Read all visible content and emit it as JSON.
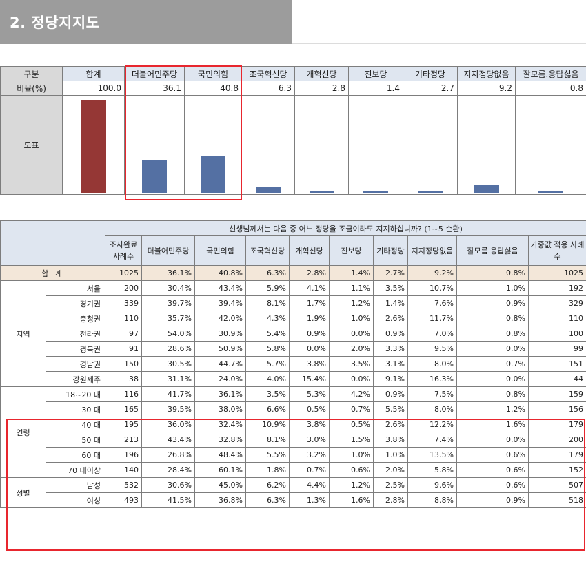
{
  "section_title": "2. 정당지지도",
  "top_table": {
    "header": [
      "구분",
      "합계",
      "더불어민주당",
      "국민의힘",
      "조국혁신당",
      "개혁신당",
      "진보당",
      "기타정당",
      "지지정당없음",
      "잘모름.응답싫음"
    ],
    "rate_label": "비율(%)",
    "rates": [
      "100.0",
      "36.1",
      "40.8",
      "6.3",
      "2.8",
      "1.4",
      "2.7",
      "9.2",
      "0.8"
    ],
    "chart_label": "도표"
  },
  "chart_data": {
    "type": "bar",
    "categories": [
      "합계",
      "더불어민주당",
      "국민의힘",
      "조국혁신당",
      "개혁신당",
      "진보당",
      "기타정당",
      "지지정당없음",
      "잘모름.응답싫음"
    ],
    "values": [
      100.0,
      36.1,
      40.8,
      6.3,
      2.8,
      1.4,
      2.7,
      9.2,
      0.8
    ],
    "ylim": [
      0,
      100
    ],
    "colors": {
      "total": "#953735",
      "party": "#5470a3"
    }
  },
  "detail_table": {
    "question": "선생님께서는 다음 중 어느 정당을 조금이라도 지지하십니까? (1~5 순환)",
    "columns": [
      "조사완료 사례수",
      "더불어민주당",
      "국민의힘",
      "조국혁신당",
      "개혁신당",
      "진보당",
      "기타정당",
      "지지정당없음",
      "잘모름.응답싫음",
      "가중값 적용 사례수"
    ],
    "total_label": "합 계",
    "total_row": [
      "1025",
      "36.1%",
      "40.8%",
      "6.3%",
      "2.8%",
      "1.4%",
      "2.7%",
      "9.2%",
      "0.8%",
      "1025"
    ],
    "groups": [
      {
        "name": "지역",
        "rows": [
          {
            "label": "서울",
            "values": [
              "200",
              "30.4%",
              "43.4%",
              "5.9%",
              "4.1%",
              "1.1%",
              "3.5%",
              "10.7%",
              "1.0%",
              "192"
            ]
          },
          {
            "label": "경기권",
            "values": [
              "339",
              "39.7%",
              "39.4%",
              "8.1%",
              "1.7%",
              "1.2%",
              "1.4%",
              "7.6%",
              "0.9%",
              "329"
            ]
          },
          {
            "label": "충청권",
            "values": [
              "110",
              "35.7%",
              "42.0%",
              "4.3%",
              "1.9%",
              "1.0%",
              "2.6%",
              "11.7%",
              "0.8%",
              "110"
            ]
          },
          {
            "label": "전라권",
            "values": [
              "97",
              "54.0%",
              "30.9%",
              "5.4%",
              "0.9%",
              "0.0%",
              "0.9%",
              "7.0%",
              "0.8%",
              "100"
            ]
          },
          {
            "label": "경북권",
            "values": [
              "91",
              "28.6%",
              "50.9%",
              "5.8%",
              "0.0%",
              "2.0%",
              "3.3%",
              "9.5%",
              "0.0%",
              "99"
            ]
          },
          {
            "label": "경남권",
            "values": [
              "150",
              "30.5%",
              "44.7%",
              "5.7%",
              "3.8%",
              "3.5%",
              "3.1%",
              "8.0%",
              "0.7%",
              "151"
            ]
          },
          {
            "label": "강원제주",
            "values": [
              "38",
              "31.1%",
              "24.0%",
              "4.0%",
              "15.4%",
              "0.0%",
              "9.1%",
              "16.3%",
              "0.0%",
              "44"
            ]
          }
        ]
      },
      {
        "name": "연령",
        "rows": [
          {
            "label": "18~20 대",
            "values": [
              "116",
              "41.7%",
              "36.1%",
              "3.5%",
              "5.3%",
              "4.2%",
              "0.9%",
              "7.5%",
              "0.8%",
              "159"
            ]
          },
          {
            "label": "30 대",
            "values": [
              "165",
              "39.5%",
              "38.0%",
              "6.6%",
              "0.5%",
              "0.7%",
              "5.5%",
              "8.0%",
              "1.2%",
              "156"
            ]
          },
          {
            "label": "40 대",
            "values": [
              "195",
              "36.0%",
              "32.4%",
              "10.9%",
              "3.8%",
              "0.5%",
              "2.6%",
              "12.2%",
              "1.6%",
              "179"
            ]
          },
          {
            "label": "50 대",
            "values": [
              "213",
              "43.4%",
              "32.8%",
              "8.1%",
              "3.0%",
              "1.5%",
              "3.8%",
              "7.4%",
              "0.0%",
              "200"
            ]
          },
          {
            "label": "60 대",
            "values": [
              "196",
              "26.8%",
              "48.4%",
              "5.5%",
              "3.2%",
              "1.0%",
              "1.0%",
              "13.5%",
              "0.6%",
              "179"
            ]
          },
          {
            "label": "70 대이상",
            "values": [
              "140",
              "28.4%",
              "60.1%",
              "1.8%",
              "0.7%",
              "0.6%",
              "2.0%",
              "5.8%",
              "0.6%",
              "152"
            ]
          }
        ]
      },
      {
        "name": "성별",
        "rows": [
          {
            "label": "남성",
            "values": [
              "532",
              "30.6%",
              "45.0%",
              "6.2%",
              "4.4%",
              "1.2%",
              "2.5%",
              "9.6%",
              "0.6%",
              "507"
            ]
          },
          {
            "label": "여성",
            "values": [
              "493",
              "41.5%",
              "36.8%",
              "6.3%",
              "1.3%",
              "1.6%",
              "2.8%",
              "8.8%",
              "0.9%",
              "518"
            ]
          }
        ]
      }
    ]
  }
}
